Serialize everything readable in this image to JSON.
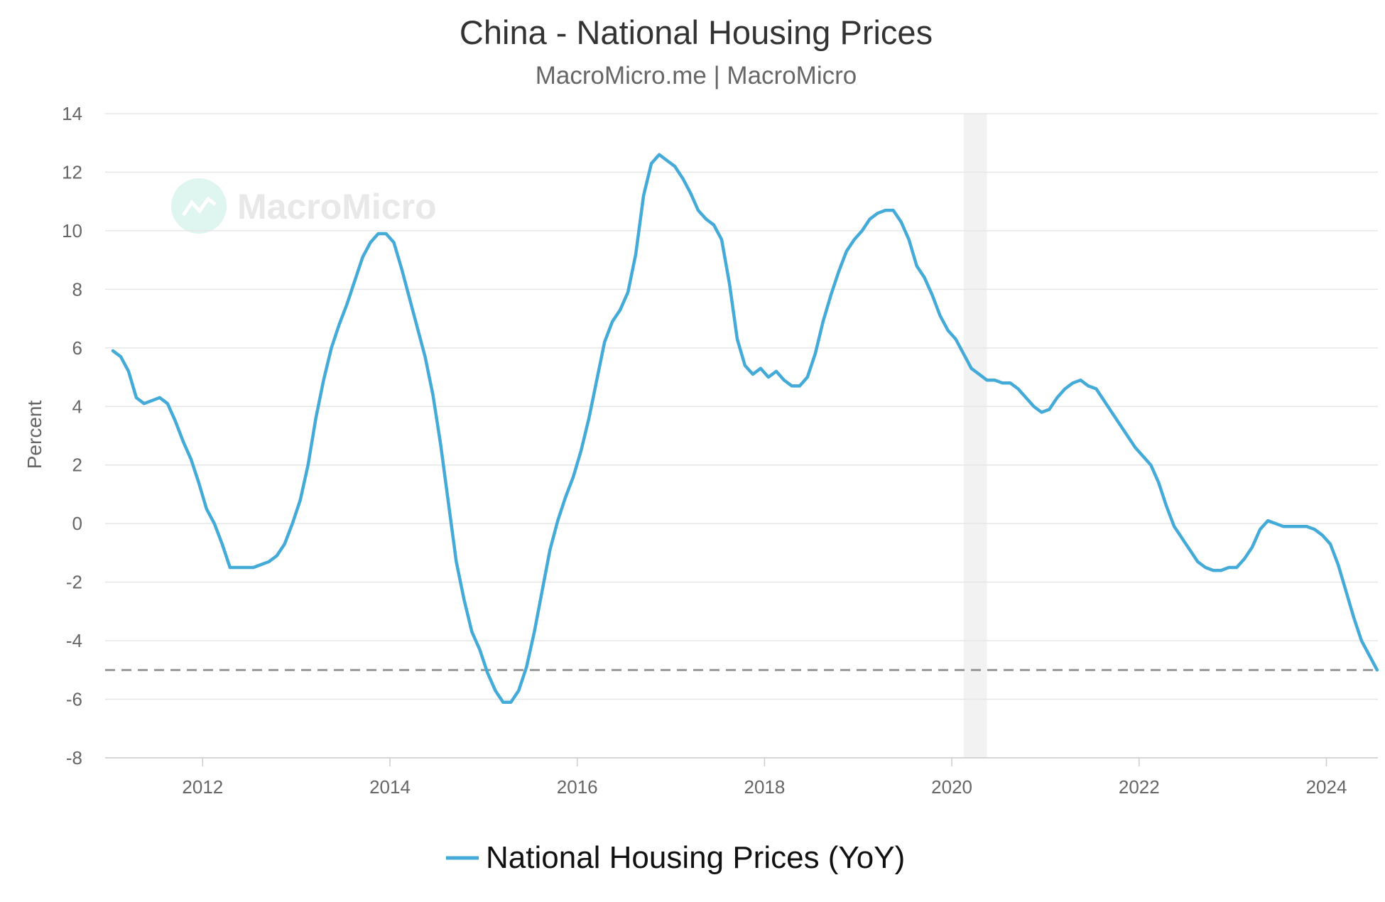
{
  "chart_data": {
    "type": "line",
    "title": "China - National Housing Prices",
    "subtitle": "MacroMicro.me | MacroMicro",
    "watermark": "MacroMicro",
    "ylabel": "Percent",
    "xlabel": "",
    "ylim": [
      -8,
      14
    ],
    "yticks": [
      14,
      12,
      10,
      8,
      6,
      4,
      2,
      0,
      -2,
      -4,
      -6,
      -8
    ],
    "xlim": [
      "2011-01",
      "2024-07"
    ],
    "xticks": [
      "2012",
      "2014",
      "2016",
      "2018",
      "2020",
      "2022",
      "2024"
    ],
    "grid": true,
    "legend_position": "bottom",
    "reference_line": {
      "y": -5,
      "style": "dashed",
      "color": "#999999"
    },
    "shaded_band": {
      "x": [
        "2020-02",
        "2020-05"
      ],
      "color": "#f2f2f2"
    },
    "series": [
      {
        "name": "National Housing Prices (YoY)",
        "color": "#44aad8",
        "x": [
          "2011-01",
          "2011-02",
          "2011-03",
          "2011-04",
          "2011-05",
          "2011-07",
          "2011-08",
          "2011-09",
          "2011-10",
          "2011-11",
          "2011-12",
          "2012-01",
          "2012-02",
          "2012-03",
          "2012-04",
          "2012-05",
          "2012-06",
          "2012-07",
          "2012-08",
          "2012-09",
          "2012-10",
          "2012-11",
          "2012-12",
          "2013-01",
          "2013-02",
          "2013-03",
          "2013-04",
          "2013-05",
          "2013-06",
          "2013-07",
          "2013-08",
          "2013-09",
          "2013-10",
          "2013-11",
          "2013-12",
          "2014-01",
          "2014-02",
          "2014-03",
          "2014-04",
          "2014-05",
          "2014-06",
          "2014-07",
          "2014-08",
          "2014-09",
          "2014-10",
          "2014-11",
          "2014-12",
          "2015-01",
          "2015-02",
          "2015-03",
          "2015-04",
          "2015-05",
          "2015-06",
          "2015-07",
          "2015-08",
          "2015-09",
          "2015-10",
          "2015-11",
          "2015-12",
          "2016-01",
          "2016-02",
          "2016-03",
          "2016-04",
          "2016-05",
          "2016-06",
          "2016-07",
          "2016-08",
          "2016-09",
          "2016-10",
          "2016-11",
          "2016-12",
          "2017-01",
          "2017-02",
          "2017-03",
          "2017-04",
          "2017-05",
          "2017-06",
          "2017-07",
          "2017-08",
          "2017-09",
          "2017-10",
          "2017-11",
          "2017-12",
          "2018-01",
          "2018-02",
          "2018-03",
          "2018-04",
          "2018-05",
          "2018-06",
          "2018-07",
          "2018-08",
          "2018-09",
          "2018-10",
          "2018-11",
          "2018-12",
          "2019-01",
          "2019-02",
          "2019-03",
          "2019-04",
          "2019-05",
          "2019-06",
          "2019-07",
          "2019-08",
          "2019-09",
          "2019-10",
          "2019-11",
          "2019-12",
          "2020-01",
          "2020-02",
          "2020-03",
          "2020-04",
          "2020-05",
          "2020-06",
          "2020-07",
          "2020-08",
          "2020-09",
          "2020-10",
          "2020-11",
          "2020-12",
          "2021-01",
          "2021-02",
          "2021-03",
          "2021-04",
          "2021-05",
          "2021-06",
          "2021-07",
          "2021-08",
          "2021-09",
          "2021-10",
          "2021-11",
          "2021-12",
          "2022-01",
          "2022-02",
          "2022-03",
          "2022-04",
          "2022-05",
          "2022-06",
          "2022-07",
          "2022-08",
          "2022-09",
          "2022-10",
          "2022-11",
          "2022-12",
          "2023-01",
          "2023-02",
          "2023-03",
          "2023-04",
          "2023-05",
          "2023-06",
          "2023-07",
          "2023-08",
          "2023-09",
          "2023-10",
          "2023-11",
          "2023-12",
          "2024-01",
          "2024-02",
          "2024-03",
          "2024-04",
          "2024-05",
          "2024-06",
          "2024-07"
        ],
        "values": [
          5.9,
          5.7,
          5.2,
          4.3,
          4.1,
          4.3,
          4.1,
          3.5,
          2.8,
          2.2,
          1.4,
          0.5,
          0.0,
          -0.7,
          -1.5,
          -1.5,
          -1.5,
          -1.5,
          -1.4,
          -1.3,
          -1.1,
          -0.7,
          0.0,
          0.8,
          2.0,
          3.6,
          4.9,
          6.0,
          6.8,
          7.5,
          8.3,
          9.1,
          9.6,
          9.9,
          9.9,
          9.6,
          8.7,
          7.7,
          6.7,
          5.7,
          4.4,
          2.7,
          0.7,
          -1.3,
          -2.6,
          -3.7,
          -4.3,
          -5.1,
          -5.7,
          -6.1,
          -6.1,
          -5.7,
          -4.9,
          -3.7,
          -2.3,
          -0.9,
          0.1,
          0.9,
          1.6,
          2.5,
          3.6,
          4.9,
          6.2,
          6.9,
          7.3,
          7.9,
          9.2,
          11.2,
          12.3,
          12.6,
          12.4,
          12.2,
          11.8,
          11.3,
          10.7,
          10.4,
          10.2,
          9.7,
          8.2,
          6.3,
          5.4,
          5.1,
          5.3,
          5.0,
          5.2,
          4.9,
          4.7,
          4.7,
          5.0,
          5.8,
          6.9,
          7.8,
          8.6,
          9.3,
          9.7,
          10.0,
          10.4,
          10.6,
          10.7,
          10.7,
          10.3,
          9.7,
          8.8,
          8.4,
          7.8,
          7.1,
          6.6,
          6.3,
          5.8,
          5.3,
          5.1,
          4.9,
          4.9,
          4.8,
          4.8,
          4.6,
          4.3,
          4.0,
          3.8,
          3.9,
          4.3,
          4.6,
          4.8,
          4.9,
          4.7,
          4.6,
          4.2,
          3.8,
          3.4,
          3.0,
          2.6,
          2.3,
          2.0,
          1.4,
          0.6,
          -0.1,
          -0.5,
          -0.9,
          -1.3,
          -1.5,
          -1.6,
          -1.6,
          -1.5,
          -1.5,
          -1.2,
          -0.8,
          -0.2,
          0.1,
          0.0,
          -0.1,
          -0.1,
          -0.1,
          -0.1,
          -0.2,
          -0.4,
          -0.7,
          -1.4,
          -2.3,
          -3.2,
          -4.0,
          -4.5,
          -5.0
        ]
      }
    ]
  }
}
